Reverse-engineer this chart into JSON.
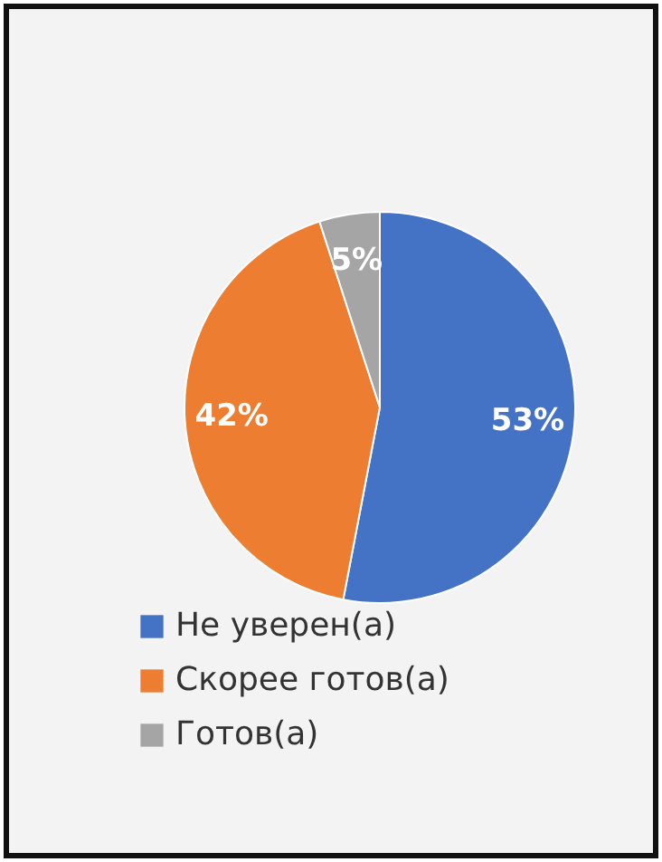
{
  "chart_data": {
    "type": "pie",
    "categories": [
      "Не уверен(а)",
      "Скорее готов(а)",
      "Готов(а)"
    ],
    "values": [
      53,
      42,
      5
    ],
    "colors": [
      "#4472c4",
      "#ed7d31",
      "#a5a5a5"
    ],
    "value_labels": [
      "53%",
      "42%",
      "5%"
    ],
    "legend": "bottom"
  }
}
